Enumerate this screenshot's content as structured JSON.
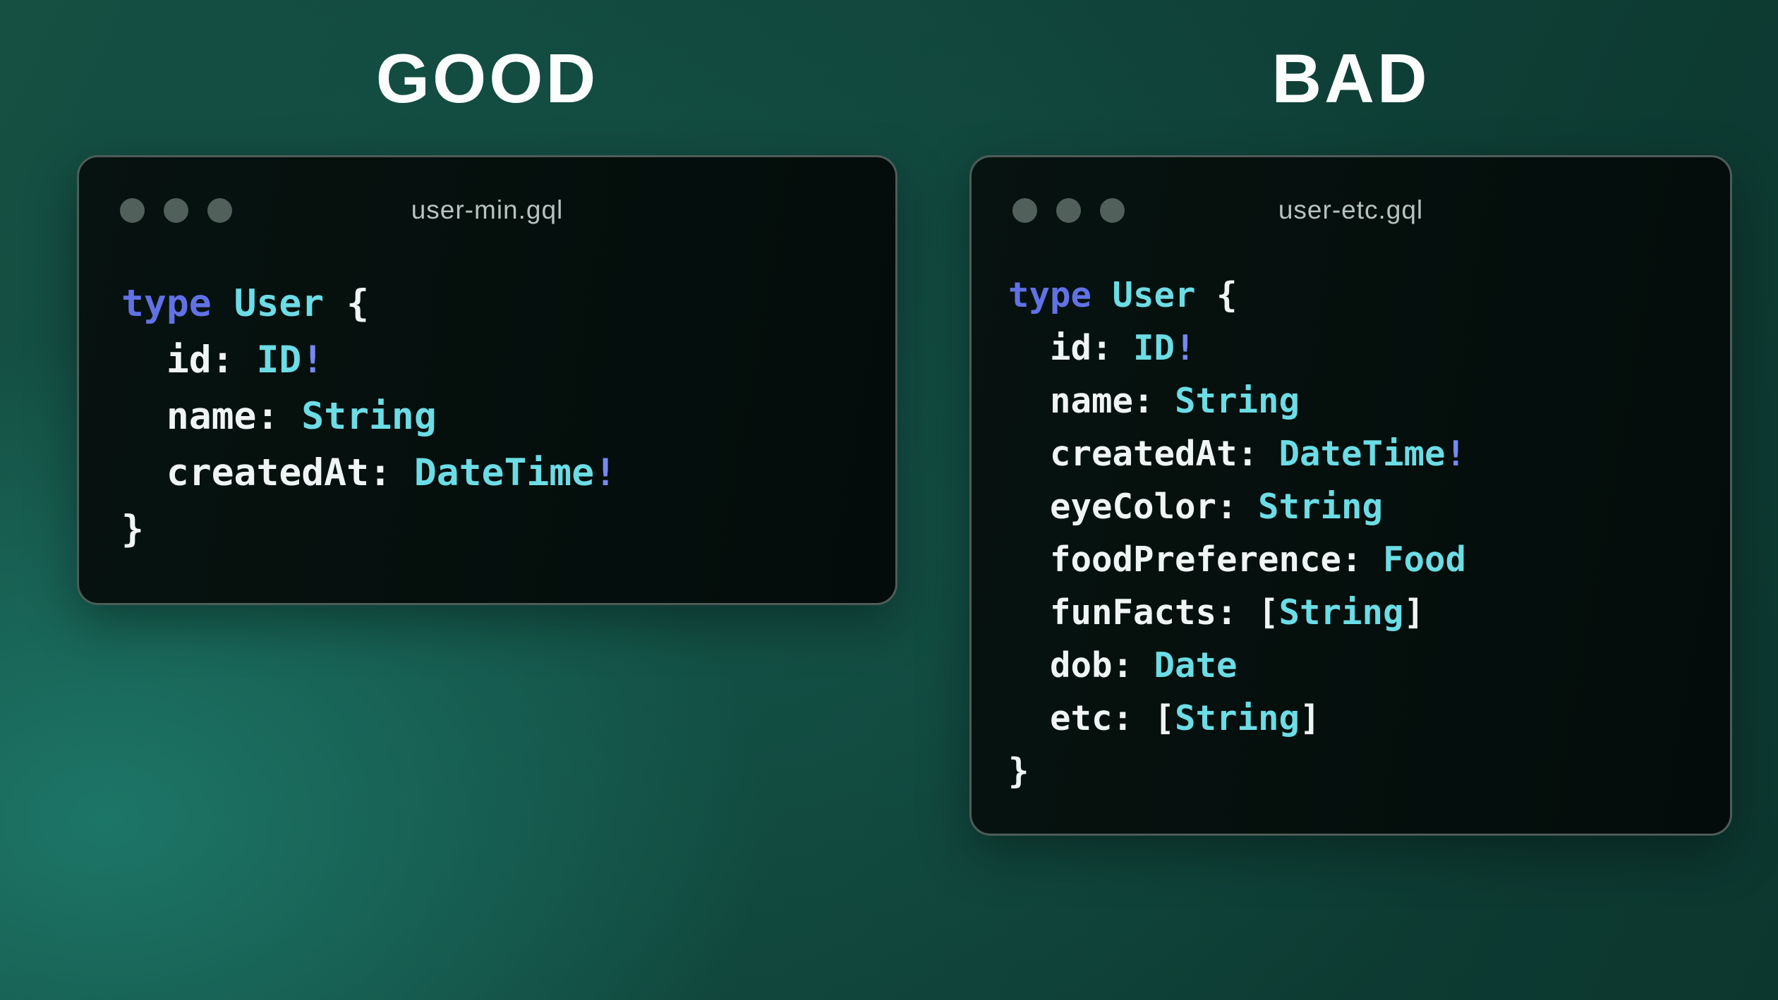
{
  "headings": {
    "good": "GOOD",
    "bad": "BAD"
  },
  "colors": {
    "window_bg": "#071310",
    "window_border": "#4e5c58",
    "dot": "#51605b",
    "title_text": "#b7c3c0",
    "code_default": "#eff5f4",
    "keyword": "#6172e6",
    "type": "#6cdce5",
    "bang": "#7789f0",
    "heading_text": "#fbfefd",
    "background_teal_light": "#1e7d6e",
    "background_teal_dark": "#0c372f"
  },
  "windows": [
    {
      "title": "user-min.gql",
      "code": [
        [
          {
            "t": "type",
            "c": "kw"
          },
          {
            "t": " ",
            "c": "pl"
          },
          {
            "t": "User",
            "c": "ty"
          },
          {
            "t": " {",
            "c": "pl"
          }
        ],
        [
          {
            "t": "  id: ",
            "c": "pl"
          },
          {
            "t": "ID",
            "c": "ty"
          },
          {
            "t": "!",
            "c": "bg"
          }
        ],
        [
          {
            "t": "  name: ",
            "c": "pl"
          },
          {
            "t": "String",
            "c": "ty"
          }
        ],
        [
          {
            "t": "  createdAt: ",
            "c": "pl"
          },
          {
            "t": "DateTime",
            "c": "ty"
          },
          {
            "t": "!",
            "c": "bg"
          }
        ],
        [
          {
            "t": "}",
            "c": "pl"
          }
        ]
      ]
    },
    {
      "title": "user-etc.gql",
      "code": [
        [
          {
            "t": "type",
            "c": "kw"
          },
          {
            "t": " ",
            "c": "pl"
          },
          {
            "t": "User",
            "c": "ty"
          },
          {
            "t": " {",
            "c": "pl"
          }
        ],
        [
          {
            "t": "  id: ",
            "c": "pl"
          },
          {
            "t": "ID",
            "c": "ty"
          },
          {
            "t": "!",
            "c": "bg"
          }
        ],
        [
          {
            "t": "  name: ",
            "c": "pl"
          },
          {
            "t": "String",
            "c": "ty"
          }
        ],
        [
          {
            "t": "  createdAt: ",
            "c": "pl"
          },
          {
            "t": "DateTime",
            "c": "ty"
          },
          {
            "t": "!",
            "c": "bg"
          }
        ],
        [
          {
            "t": "  eyeColor: ",
            "c": "pl"
          },
          {
            "t": "String",
            "c": "ty"
          }
        ],
        [
          {
            "t": "  foodPreference: ",
            "c": "pl"
          },
          {
            "t": "Food",
            "c": "ty"
          }
        ],
        [
          {
            "t": "  funFacts: [",
            "c": "pl"
          },
          {
            "t": "String",
            "c": "ty"
          },
          {
            "t": "]",
            "c": "pl"
          }
        ],
        [
          {
            "t": "  dob: ",
            "c": "pl"
          },
          {
            "t": "Date",
            "c": "ty"
          }
        ],
        [
          {
            "t": "  etc: [",
            "c": "pl"
          },
          {
            "t": "String",
            "c": "ty"
          },
          {
            "t": "]",
            "c": "pl"
          }
        ],
        [
          {
            "t": "}",
            "c": "pl"
          }
        ]
      ]
    }
  ]
}
